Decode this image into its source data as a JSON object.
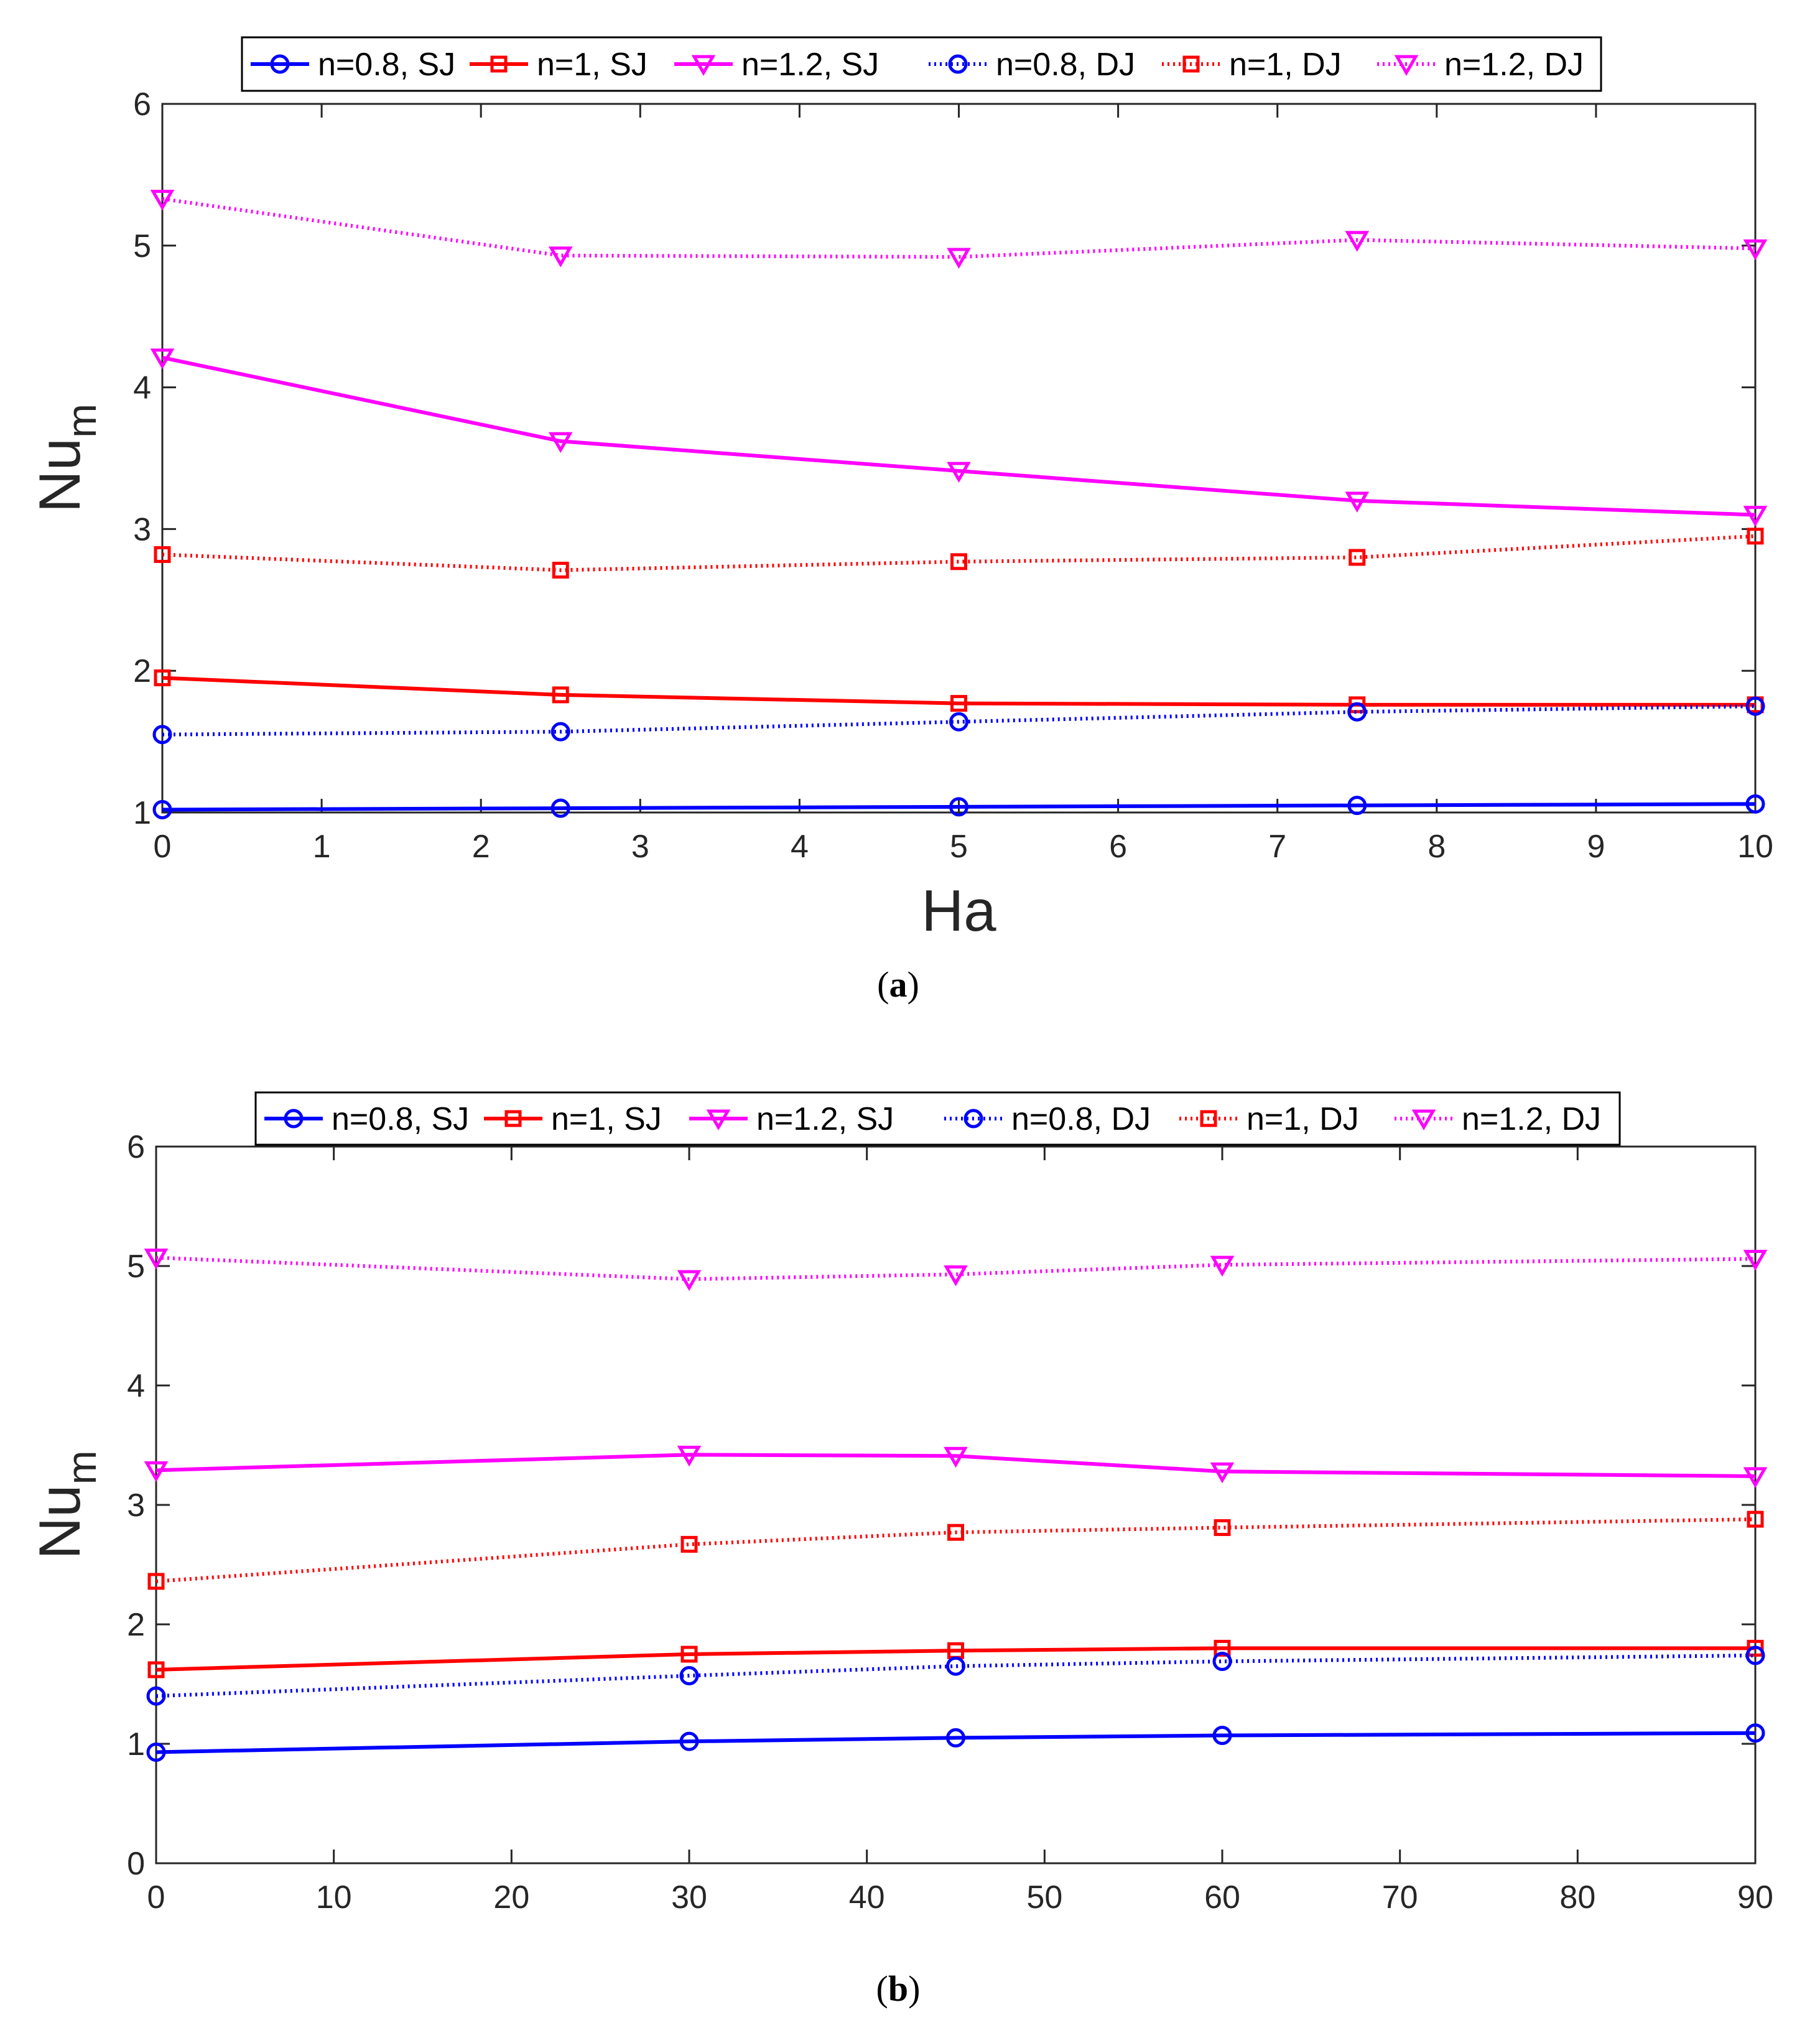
{
  "chart_data": [
    {
      "panel": "a",
      "type": "line",
      "caption_letter": "a",
      "xlabel": "Ha",
      "ylabel_main": "Nu",
      "ylabel_sub": "m",
      "x": [
        0,
        2.5,
        5,
        7.5,
        10
      ],
      "xlim": [
        0,
        10
      ],
      "ylim": [
        1,
        6
      ],
      "xticks": [
        0,
        1,
        2,
        3,
        4,
        5,
        6,
        7,
        8,
        9,
        10
      ],
      "yticks": [
        1,
        2,
        3,
        4,
        5,
        6
      ],
      "legend_position": "top-center",
      "series": [
        {
          "name": "n=0.8, SJ",
          "color": "#0000ff",
          "marker": "circle",
          "line": "solid",
          "values": [
            1.02,
            1.03,
            1.04,
            1.05,
            1.06
          ]
        },
        {
          "name": "n=1, SJ",
          "color": "#ff0000",
          "marker": "square",
          "line": "solid",
          "values": [
            1.95,
            1.83,
            1.77,
            1.76,
            1.76
          ]
        },
        {
          "name": "n=1.2, SJ",
          "color": "#ff00ff",
          "marker": "triangle-down",
          "line": "solid",
          "values": [
            4.21,
            3.62,
            3.41,
            3.2,
            3.1
          ]
        },
        {
          "name": "n=0.8, DJ",
          "color": "#0000ff",
          "marker": "circle",
          "line": "dotted",
          "values": [
            1.55,
            1.57,
            1.64,
            1.71,
            1.75
          ]
        },
        {
          "name": "n=1, DJ",
          "color": "#ff0000",
          "marker": "square",
          "line": "dotted",
          "values": [
            2.82,
            2.71,
            2.77,
            2.8,
            2.95
          ]
        },
        {
          "name": "n=1.2, DJ",
          "color": "#ff00ff",
          "marker": "triangle-down",
          "line": "dotted",
          "values": [
            5.33,
            4.93,
            4.92,
            5.04,
            4.98
          ]
        }
      ]
    },
    {
      "panel": "b",
      "type": "line",
      "caption_letter": "b",
      "xlabel": "",
      "ylabel_main": "Nu",
      "ylabel_sub": "m",
      "x": [
        0,
        30,
        45,
        60,
        90
      ],
      "xlim": [
        0,
        90
      ],
      "ylim": [
        0,
        6
      ],
      "xticks": [
        0,
        10,
        20,
        30,
        40,
        50,
        60,
        70,
        80,
        90
      ],
      "yticks": [
        0,
        1,
        2,
        3,
        4,
        5,
        6
      ],
      "legend_position": "top-center",
      "series": [
        {
          "name": "n=0.8, SJ",
          "color": "#0000ff",
          "marker": "circle",
          "line": "solid",
          "values": [
            0.93,
            1.02,
            1.05,
            1.07,
            1.09
          ]
        },
        {
          "name": "n=1, SJ",
          "color": "#ff0000",
          "marker": "square",
          "line": "solid",
          "values": [
            1.62,
            1.75,
            1.78,
            1.8,
            1.8
          ]
        },
        {
          "name": "n=1.2, SJ",
          "color": "#ff00ff",
          "marker": "triangle-down",
          "line": "solid",
          "values": [
            3.29,
            3.42,
            3.41,
            3.28,
            3.24
          ]
        },
        {
          "name": "n=0.8, DJ",
          "color": "#0000ff",
          "marker": "circle",
          "line": "dotted",
          "values": [
            1.4,
            1.57,
            1.65,
            1.69,
            1.74
          ]
        },
        {
          "name": "n=1, DJ",
          "color": "#ff0000",
          "marker": "square",
          "line": "dotted",
          "values": [
            2.36,
            2.67,
            2.77,
            2.81,
            2.88
          ]
        },
        {
          "name": "n=1.2, DJ",
          "color": "#ff00ff",
          "marker": "triangle-down",
          "line": "dotted",
          "values": [
            5.07,
            4.89,
            4.93,
            5.01,
            5.06
          ]
        }
      ]
    }
  ]
}
